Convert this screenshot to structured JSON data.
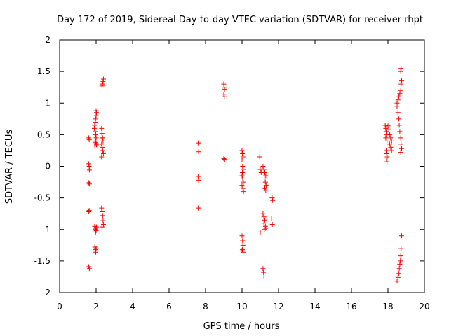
{
  "chart_data": {
    "type": "scatter",
    "title": "Day 172 of 2019, Sidereal Day-to-day VTEC variation (SDTVAR) for receiver rhpt",
    "xlabel": "GPS time / hours",
    "ylabel": "SDTVAR / TECUs",
    "xlim": [
      0,
      20
    ],
    "ylim": [
      -2,
      2
    ],
    "xticks": [
      0,
      2,
      4,
      6,
      8,
      10,
      12,
      14,
      16,
      18,
      20
    ],
    "yticks": [
      -2,
      -1.5,
      -1,
      -0.5,
      0,
      0.5,
      1,
      1.5,
      2
    ],
    "marker": "+",
    "color": "#ff0000",
    "series": [
      {
        "name": "SDTVAR",
        "points": [
          [
            1.6,
            0.45
          ],
          [
            1.62,
            0.42
          ],
          [
            1.6,
            0.04
          ],
          [
            1.62,
            0.0
          ],
          [
            1.63,
            -0.06
          ],
          [
            1.6,
            -0.26
          ],
          [
            1.63,
            -0.28
          ],
          [
            1.62,
            -0.7
          ],
          [
            1.6,
            -0.72
          ],
          [
            1.6,
            -1.59
          ],
          [
            1.63,
            -1.62
          ],
          [
            1.9,
            0.6
          ],
          [
            1.92,
            0.65
          ],
          [
            1.95,
            0.7
          ],
          [
            1.97,
            0.75
          ],
          [
            2.0,
            0.8
          ],
          [
            2.02,
            0.85
          ],
          [
            2.0,
            0.88
          ],
          [
            1.95,
            0.55
          ],
          [
            1.98,
            0.5
          ],
          [
            2.0,
            0.45
          ],
          [
            1.97,
            0.4
          ],
          [
            1.95,
            0.38
          ],
          [
            2.0,
            0.36
          ],
          [
            2.02,
            0.34
          ],
          [
            1.93,
            0.32
          ],
          [
            1.92,
            -0.95
          ],
          [
            1.95,
            -0.98
          ],
          [
            1.98,
            -1.0
          ],
          [
            2.0,
            -1.02
          ],
          [
            2.02,
            -0.96
          ],
          [
            1.97,
            -1.04
          ],
          [
            1.93,
            -1.28
          ],
          [
            1.96,
            -1.32
          ],
          [
            1.98,
            -1.36
          ],
          [
            2.0,
            -1.3
          ],
          [
            2.3,
            0.6
          ],
          [
            2.32,
            0.52
          ],
          [
            2.35,
            0.45
          ],
          [
            2.38,
            0.4
          ],
          [
            2.3,
            0.35
          ],
          [
            2.33,
            0.3
          ],
          [
            2.36,
            0.25
          ],
          [
            2.4,
            0.2
          ],
          [
            2.3,
            0.15
          ],
          [
            2.35,
            0.45
          ],
          [
            2.35,
            1.3
          ],
          [
            2.38,
            1.34
          ],
          [
            2.4,
            1.38
          ],
          [
            2.32,
            1.27
          ],
          [
            2.3,
            -0.66
          ],
          [
            2.33,
            -0.72
          ],
          [
            2.36,
            -0.78
          ],
          [
            2.38,
            -0.86
          ],
          [
            2.4,
            -0.92
          ],
          [
            2.32,
            -0.96
          ],
          [
            7.6,
            0.37
          ],
          [
            7.62,
            0.23
          ],
          [
            7.6,
            -0.16
          ],
          [
            7.62,
            -0.22
          ],
          [
            7.6,
            -0.66
          ],
          [
            9.0,
            1.3
          ],
          [
            9.02,
            1.25
          ],
          [
            9.04,
            1.22
          ],
          [
            9.0,
            1.14
          ],
          [
            9.03,
            1.1
          ],
          [
            9.0,
            0.12
          ],
          [
            9.03,
            0.1
          ],
          [
            9.05,
            0.11
          ],
          [
            10.0,
            0.25
          ],
          [
            10.02,
            0.2
          ],
          [
            10.05,
            0.15
          ],
          [
            10.0,
            0.1
          ],
          [
            10.03,
            0.0
          ],
          [
            10.06,
            -0.05
          ],
          [
            10.02,
            -0.1
          ],
          [
            10.0,
            -0.15
          ],
          [
            10.04,
            -0.2
          ],
          [
            10.07,
            -0.25
          ],
          [
            10.0,
            -0.3
          ],
          [
            10.05,
            -0.35
          ],
          [
            10.08,
            -0.4
          ],
          [
            10.0,
            -1.1
          ],
          [
            10.03,
            -1.18
          ],
          [
            10.05,
            -1.25
          ],
          [
            10.02,
            -1.32
          ],
          [
            10.06,
            -1.36
          ],
          [
            10.0,
            -1.34
          ],
          [
            10.97,
            0.15
          ],
          [
            11.0,
            -0.05
          ],
          [
            11.05,
            -0.1
          ],
          [
            11.0,
            -1.04
          ],
          [
            11.15,
            0.0
          ],
          [
            11.2,
            -0.05
          ],
          [
            11.25,
            -0.1
          ],
          [
            11.3,
            -0.15
          ],
          [
            11.22,
            -0.2
          ],
          [
            11.28,
            -0.25
          ],
          [
            11.32,
            -0.3
          ],
          [
            11.25,
            -0.35
          ],
          [
            11.3,
            -0.38
          ],
          [
            11.15,
            -0.75
          ],
          [
            11.2,
            -0.8
          ],
          [
            11.25,
            -0.85
          ],
          [
            11.2,
            -0.9
          ],
          [
            11.28,
            -0.95
          ],
          [
            11.3,
            -0.98
          ],
          [
            11.22,
            -1.0
          ],
          [
            11.15,
            -1.62
          ],
          [
            11.18,
            -1.68
          ],
          [
            11.2,
            -1.74
          ],
          [
            11.65,
            -0.5
          ],
          [
            11.68,
            -0.54
          ],
          [
            11.62,
            -0.82
          ],
          [
            11.66,
            -0.92
          ],
          [
            17.85,
            0.65
          ],
          [
            17.88,
            0.6
          ],
          [
            17.9,
            0.55
          ],
          [
            17.92,
            0.5
          ],
          [
            17.88,
            0.45
          ],
          [
            17.95,
            0.4
          ],
          [
            17.9,
            0.25
          ],
          [
            17.93,
            0.2
          ],
          [
            17.96,
            0.15
          ],
          [
            17.92,
            0.1
          ],
          [
            17.95,
            0.07
          ],
          [
            18.0,
            0.64
          ],
          [
            18.05,
            0.58
          ],
          [
            18.1,
            0.5
          ],
          [
            18.15,
            0.45
          ],
          [
            18.2,
            0.4
          ],
          [
            18.1,
            0.35
          ],
          [
            18.15,
            0.3
          ],
          [
            18.2,
            0.25
          ],
          [
            18.5,
            1.0
          ],
          [
            18.55,
            1.05
          ],
          [
            18.6,
            1.1
          ],
          [
            18.65,
            1.15
          ],
          [
            18.7,
            1.2
          ],
          [
            18.72,
            1.3
          ],
          [
            18.75,
            1.35
          ],
          [
            18.7,
            1.5
          ],
          [
            18.72,
            1.55
          ],
          [
            18.5,
            0.95
          ],
          [
            18.55,
            0.85
          ],
          [
            18.6,
            0.75
          ],
          [
            18.62,
            0.65
          ],
          [
            18.65,
            0.55
          ],
          [
            18.7,
            0.45
          ],
          [
            18.72,
            0.35
          ],
          [
            18.75,
            0.28
          ],
          [
            18.7,
            0.22
          ],
          [
            18.5,
            -1.82
          ],
          [
            18.55,
            -1.76
          ],
          [
            18.6,
            -1.7
          ],
          [
            18.62,
            -1.62
          ],
          [
            18.65,
            -1.55
          ],
          [
            18.68,
            -1.5
          ],
          [
            18.7,
            -1.42
          ],
          [
            18.72,
            -1.3
          ],
          [
            18.75,
            -1.1
          ]
        ]
      }
    ]
  }
}
